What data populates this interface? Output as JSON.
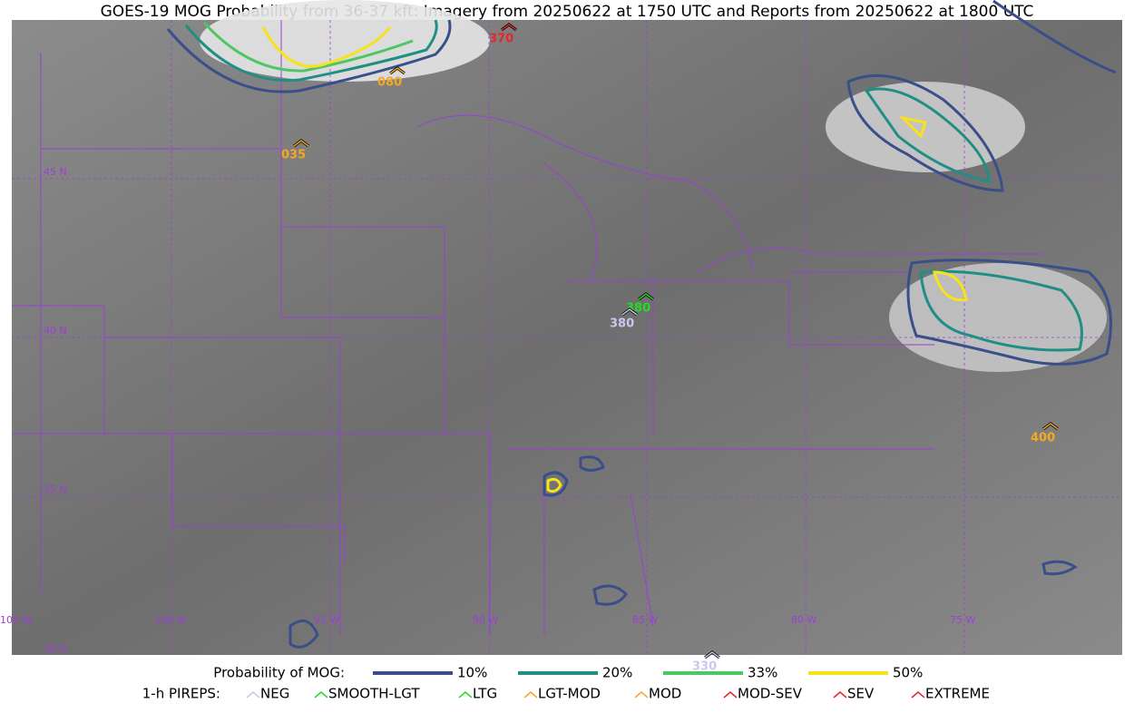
{
  "title": "GOES-19 MOG Probability from 36-37 kft: Imagery from 20250622 at 1750 UTC and Reports from 20250622 at 1800 UTC",
  "grid_labels": [
    "45 N",
    "40 N",
    "35 N",
    "30 N",
    "105 W",
    "100 W",
    "95 W",
    "90 W",
    "85 W",
    "80 W",
    "75 W"
  ],
  "pirep_reports": [
    {
      "altitude": "370",
      "color": "#e8252b"
    },
    {
      "altitude": "080",
      "color": "#f5a623"
    },
    {
      "altitude": "035",
      "color": "#f5a623"
    },
    {
      "altitude": "380",
      "color": "#22dd22"
    },
    {
      "altitude": "380",
      "color": "#c8c8f0"
    },
    {
      "altitude": "400",
      "color": "#f5a623"
    },
    {
      "altitude": "330",
      "color": "#c8c8f0"
    }
  ],
  "legend": {
    "probability_title": "Probability of MOG:",
    "probability_levels": [
      {
        "label": "10%",
        "color": "#3a4f8a"
      },
      {
        "label": "20%",
        "color": "#1f8f86"
      },
      {
        "label": "33%",
        "color": "#4cc764"
      },
      {
        "label": "50%",
        "color": "#f7e21b"
      }
    ],
    "pirep_title": "1-h PIREPS:",
    "pirep_types": [
      {
        "label": "NEG",
        "color": "#c8c8f0"
      },
      {
        "label": "SMOOTH-LGT",
        "color": "#22dd22"
      },
      {
        "label": "LTG",
        "color": "#22dd22"
      },
      {
        "label": "LGT-MOD",
        "color": "#f5a623"
      },
      {
        "label": "MOD",
        "color": "#f5a623"
      },
      {
        "label": "MOD-SEV",
        "color": "#e8252b"
      },
      {
        "label": "SEV",
        "color": "#e8252b"
      },
      {
        "label": "EXTREME",
        "color": "#e8252b"
      }
    ]
  }
}
